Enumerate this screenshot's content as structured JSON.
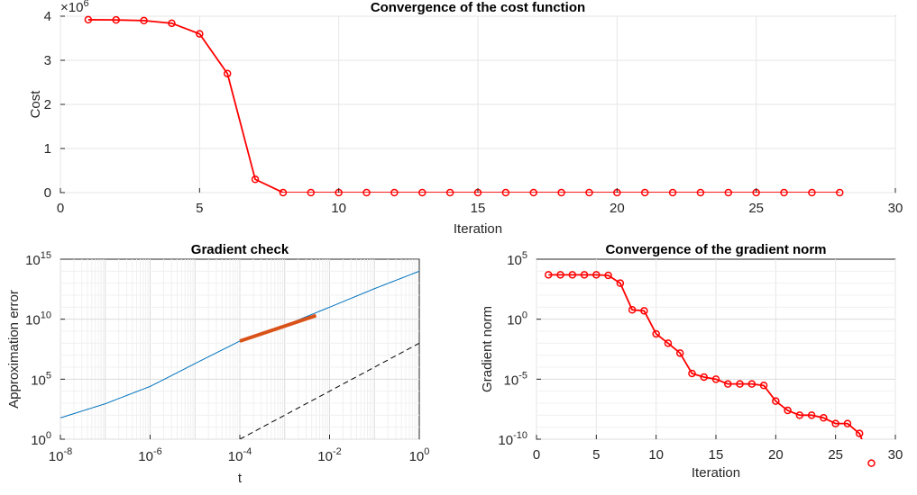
{
  "colors": {
    "series": "#ff0000",
    "blue": "#0072bd",
    "orange": "#d95319",
    "axis": "#262626",
    "grid": "#e6e6e6"
  },
  "chart_data": [
    {
      "type": "line",
      "title": "Convergence of the cost function",
      "xlabel": "Iteration",
      "ylabel": "Cost",
      "exponent_label": "×10",
      "exponent_power": "6",
      "xlim": [
        0,
        30
      ],
      "ylim": [
        0,
        4000000
      ],
      "xticks": [
        "0",
        "5",
        "10",
        "15",
        "20",
        "25",
        "30"
      ],
      "yticks": [
        "0",
        "1",
        "2",
        "3",
        "4"
      ],
      "grid": true,
      "marker": "circle",
      "x": [
        1,
        2,
        3,
        4,
        5,
        6,
        7,
        8,
        9,
        10,
        11,
        12,
        13,
        14,
        15,
        16,
        17,
        18,
        19,
        20,
        21,
        22,
        23,
        24,
        25,
        26,
        27,
        28
      ],
      "values": [
        3920000,
        3915000,
        3900000,
        3840000,
        3600000,
        2700000,
        300000,
        0,
        0,
        0,
        0,
        0,
        0,
        0,
        0,
        0,
        0,
        0,
        0,
        0,
        0,
        0,
        0,
        0,
        0,
        0,
        0,
        0
      ]
    },
    {
      "type": "line",
      "scale": "log-log",
      "title": "Gradient check",
      "xlabel": "t",
      "ylabel": "Approximation error",
      "xlim": [
        1e-08,
        1
      ],
      "ylim": [
        1,
        1000000000000000.0
      ],
      "xticks": [
        {
          "base": "10",
          "exp": "-8"
        },
        {
          "base": "10",
          "exp": "-6"
        },
        {
          "base": "10",
          "exp": "-4"
        },
        {
          "base": "10",
          "exp": "-2"
        },
        {
          "base": "10",
          "exp": "0"
        }
      ],
      "yticks": [
        {
          "base": "10",
          "exp": "0"
        },
        {
          "base": "10",
          "exp": "5"
        },
        {
          "base": "10",
          "exp": "10"
        },
        {
          "base": "10",
          "exp": "15"
        }
      ],
      "grid": true,
      "series": [
        {
          "style": "solid-blue",
          "x": [
            1e-08,
            1e-07,
            1e-06,
            3e-06,
            1e-05,
            0.0001,
            0.001,
            0.01,
            0.1,
            1
          ],
          "values": [
            60,
            900,
            25000,
            200000,
            2000000,
            150000000,
            3000000000.0,
            100000000000.0,
            3500000000000.0,
            100000000000000.0
          ]
        },
        {
          "style": "thick-orange",
          "x": [
            0.0001,
            0.005
          ],
          "values": [
            150000000,
            20000000000.0
          ]
        },
        {
          "style": "dashed-black",
          "x": [
            0.0001,
            1
          ],
          "values": [
            1,
            100000000.0
          ]
        }
      ]
    },
    {
      "type": "line",
      "scale": "semilog-y",
      "title": "Convergence of the gradient norm",
      "xlabel": "Iteration",
      "ylabel": "Gradient norm",
      "xlim": [
        0,
        30
      ],
      "ylim": [
        1e-10,
        100000.0
      ],
      "xticks": [
        "0",
        "5",
        "10",
        "15",
        "20",
        "25",
        "30"
      ],
      "yticks": [
        {
          "base": "10",
          "exp": "-10"
        },
        {
          "base": "10",
          "exp": "-5"
        },
        {
          "base": "10",
          "exp": "0"
        },
        {
          "base": "10",
          "exp": "5"
        }
      ],
      "grid": true,
      "marker": "circle",
      "x": [
        1,
        2,
        3,
        4,
        5,
        6,
        7,
        8,
        9,
        10,
        11,
        12,
        13,
        14,
        15,
        16,
        17,
        18,
        19,
        20,
        21,
        22,
        23,
        24,
        25,
        26,
        27,
        28
      ],
      "values": [
        5000,
        5000,
        5000,
        5000,
        5000,
        4500,
        1000,
        6,
        5,
        0.06,
        0.01,
        0.0015,
        3e-05,
        1.5e-05,
        1e-05,
        4e-06,
        4e-06,
        4e-06,
        3e-06,
        1.5e-07,
        2.5e-08,
        1e-08,
        1e-08,
        6e-09,
        2e-09,
        2e-09,
        3e-10,
        1e-12
      ]
    }
  ]
}
